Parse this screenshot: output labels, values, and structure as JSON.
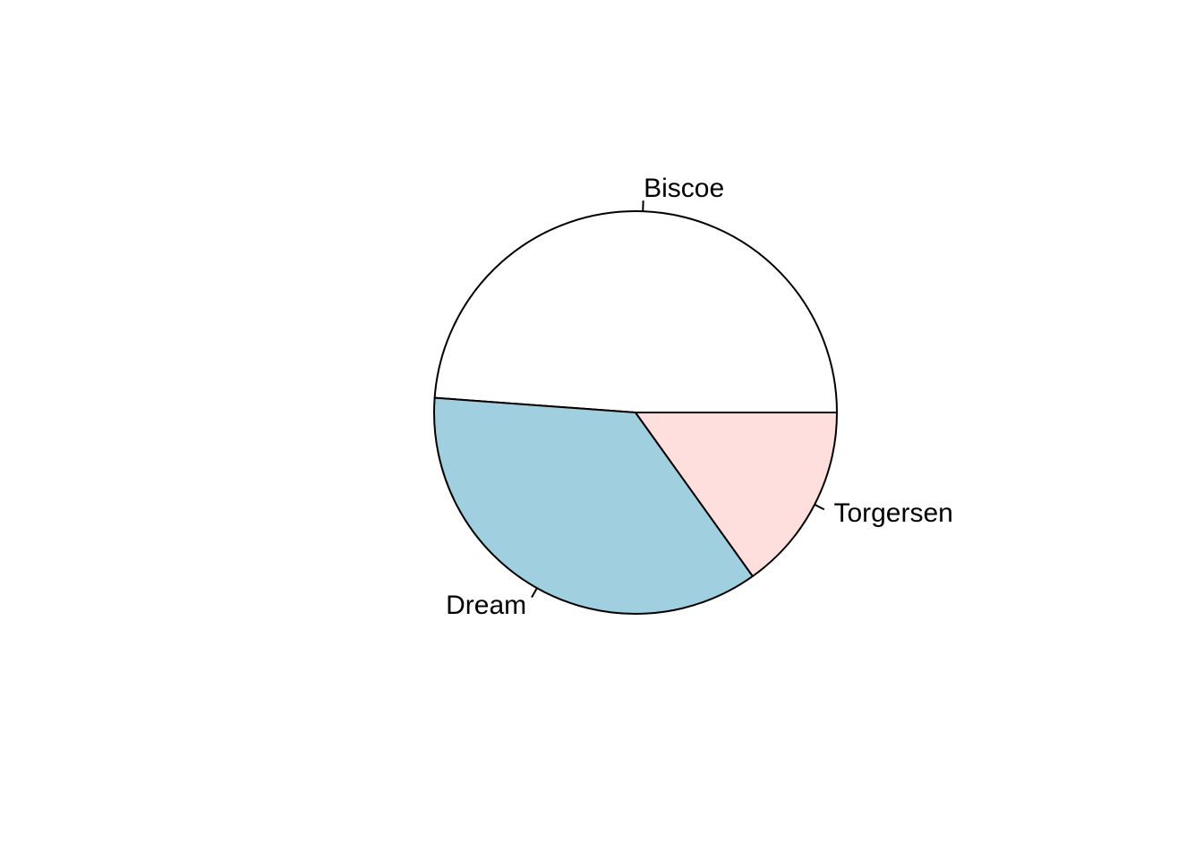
{
  "chart_data": {
    "type": "pie",
    "title": "",
    "categories": [
      "Biscoe",
      "Dream",
      "Torgersen"
    ],
    "values": [
      168,
      124,
      52
    ],
    "colors": [
      "#FFFFFF",
      "#A0CFE0",
      "#FFDEDE"
    ],
    "start_angle_deg": 0,
    "direction": "counterclockwise",
    "legend": "none",
    "labels_outside": true
  }
}
